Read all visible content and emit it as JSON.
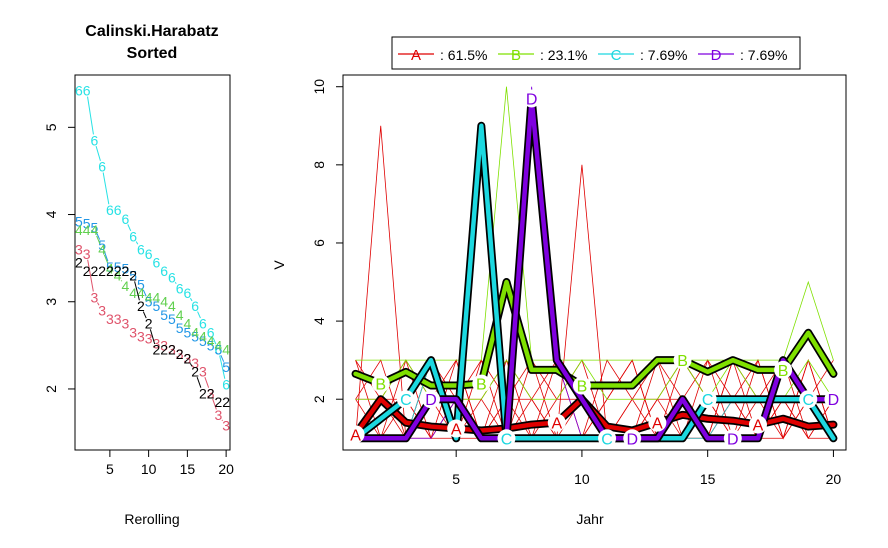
{
  "colors": {
    "A": "#DF0000",
    "B": "#7FE000",
    "C": "#1CD8E0",
    "D": "#7F00DF",
    "red": "#DF536B",
    "green": "#61D04F",
    "blue": "#2297E6",
    "cyan": "#28E2E5",
    "black": "#000000",
    "thin_red": "#DF0000"
  },
  "chart_data": [
    {
      "type": "scatter",
      "title": "Calinski.Harabatz\nSorted",
      "title_line1": "Calinski.Harabatz",
      "title_line2": "Sorted",
      "xlabel": "Rerolling",
      "ylabel": "",
      "xlim": [
        0.5,
        20.5
      ],
      "ylim": [
        1.3,
        5.6
      ],
      "xticks": [
        "5",
        "10",
        "15",
        "20"
      ],
      "yticks": [
        "2",
        "3",
        "4",
        "5"
      ],
      "series": [
        {
          "label": "6",
          "color": "cyan",
          "values": [
            5.42,
            5.42,
            4.85,
            4.55,
            4.05,
            4.05,
            3.95,
            3.75,
            3.6,
            3.55,
            3.45,
            3.35,
            3.28,
            3.15,
            3.1,
            2.95,
            2.75,
            2.65,
            2.45,
            2.05
          ]
        },
        {
          "label": "5",
          "color": "blue",
          "values": [
            3.92,
            3.9,
            3.85,
            3.65,
            3.4,
            3.4,
            3.38,
            3.3,
            3.2,
            3.0,
            2.95,
            2.85,
            2.8,
            2.7,
            2.65,
            2.6,
            2.55,
            2.5,
            2.45,
            2.25
          ]
        },
        {
          "label": "4",
          "color": "green",
          "values": [
            3.82,
            3.82,
            3.82,
            3.6,
            3.38,
            3.3,
            3.18,
            3.1,
            3.1,
            3.05,
            3.05,
            3.0,
            2.95,
            2.85,
            2.75,
            2.65,
            2.6,
            2.55,
            2.5,
            2.45
          ]
        },
        {
          "label": "3",
          "color": "red",
          "values": [
            3.6,
            3.55,
            3.05,
            2.9,
            2.8,
            2.8,
            2.75,
            2.65,
            2.6,
            2.58,
            2.52,
            2.5,
            2.45,
            2.4,
            2.35,
            2.3,
            2.2,
            1.95,
            1.7,
            1.58
          ]
        },
        {
          "label": "2",
          "color": "black",
          "values": [
            3.45,
            3.35,
            3.35,
            3.35,
            3.35,
            3.35,
            3.35,
            3.3,
            2.95,
            2.75,
            2.45,
            2.45,
            2.45,
            2.4,
            2.35,
            2.2,
            1.95,
            1.95,
            1.85,
            1.85
          ]
        }
      ]
    },
    {
      "type": "line",
      "title": "",
      "xlabel": "Jahr",
      "ylabel": "V",
      "xlim": [
        0.5,
        20.5
      ],
      "ylim": [
        0.7,
        10.3
      ],
      "xticks": [
        "5",
        "10",
        "15",
        "20"
      ],
      "yticks": [
        "2",
        "4",
        "6",
        "8",
        "10"
      ],
      "legend": {
        "position": "top",
        "entries": [
          {
            "letter": "A",
            "text": ": 61.5%",
            "color": "A"
          },
          {
            "letter": "B",
            "text": ": 23.1%",
            "color": "B"
          },
          {
            "letter": "C",
            "text": ": 7.69%",
            "color": "C"
          },
          {
            "letter": "D",
            "text": ": 7.69%",
            "color": "D"
          }
        ]
      },
      "background_series": [
        {
          "color": "A",
          "values": [
            1,
            9,
            1,
            3,
            2,
            1,
            3,
            2,
            1,
            8,
            1,
            1,
            3,
            2,
            1,
            3,
            2,
            1,
            3,
            1
          ]
        },
        {
          "color": "A",
          "values": [
            3,
            1,
            2,
            1,
            3,
            1,
            2,
            3,
            1,
            1,
            2,
            3,
            1,
            2,
            3,
            1,
            1,
            2,
            1,
            2
          ]
        },
        {
          "color": "A",
          "values": [
            2,
            3,
            1,
            2,
            1,
            3,
            1,
            1,
            3,
            2,
            1,
            2,
            3,
            1,
            1,
            2,
            3,
            1,
            2,
            1
          ]
        },
        {
          "color": "A",
          "values": [
            1,
            2,
            3,
            1,
            2,
            2,
            3,
            1,
            2,
            3,
            1,
            1,
            2,
            3,
            2,
            1,
            2,
            3,
            1,
            1
          ]
        },
        {
          "color": "A",
          "values": [
            2,
            1,
            1,
            3,
            1,
            1,
            2,
            2,
            1,
            1,
            3,
            2,
            1,
            1,
            3,
            2,
            1,
            1,
            2,
            3
          ]
        },
        {
          "color": "A",
          "values": [
            3,
            2,
            2,
            1,
            1,
            2,
            1,
            3,
            2,
            2,
            1,
            1,
            2,
            2,
            1,
            3,
            1,
            2,
            1,
            2
          ]
        },
        {
          "color": "A",
          "values": [
            1,
            1,
            3,
            2,
            3,
            1,
            1,
            2,
            3,
            1,
            2,
            3,
            1,
            3,
            2,
            1,
            3,
            1,
            3,
            1
          ]
        },
        {
          "color": "A",
          "values": [
            2,
            2,
            1,
            1,
            2,
            3,
            2,
            1,
            1,
            2,
            1,
            2,
            2,
            1,
            1,
            2,
            1,
            3,
            2,
            2
          ]
        },
        {
          "color": "B",
          "values": [
            3,
            3,
            3,
            3,
            3,
            3,
            10,
            3,
            3,
            3,
            3,
            3,
            3,
            3,
            3,
            3,
            3,
            3,
            5,
            3
          ]
        },
        {
          "color": "B",
          "values": [
            2,
            2,
            3,
            2,
            2,
            2,
            3,
            2,
            2,
            3,
            2,
            2,
            2,
            3,
            2,
            3,
            2,
            2,
            3,
            2
          ]
        },
        {
          "color": "C",
          "values": [
            1,
            1,
            1,
            3,
            1,
            9,
            1,
            1,
            1,
            1,
            1,
            1,
            1,
            1,
            1,
            2,
            2,
            2,
            2,
            1
          ]
        },
        {
          "color": "D",
          "values": [
            1,
            1,
            1,
            1,
            2,
            1,
            1,
            10,
            3,
            1,
            1,
            1,
            1,
            2,
            1,
            1,
            1,
            3,
            2,
            2
          ]
        }
      ],
      "series": [
        {
          "name": "A",
          "color": "A",
          "values": [
            1.1,
            2.0,
            1.4,
            1.3,
            1.25,
            1.2,
            1.25,
            1.35,
            1.4,
            2.0,
            1.3,
            1.2,
            1.4,
            1.6,
            1.5,
            1.45,
            1.35,
            1.5,
            1.3,
            1.35
          ]
        },
        {
          "name": "B",
          "color": "B",
          "values": [
            2.65,
            2.4,
            2.7,
            2.35,
            2.35,
            2.4,
            5.0,
            2.75,
            2.75,
            2.35,
            2.35,
            2.35,
            3.0,
            3.0,
            2.7,
            3.0,
            2.75,
            2.75,
            3.7,
            2.65
          ]
        },
        {
          "name": "C",
          "color": "C",
          "values": [
            1.0,
            1.5,
            2.0,
            3.0,
            1.0,
            9.0,
            1.0,
            1.0,
            1.0,
            1.0,
            1.0,
            1.0,
            1.0,
            1.0,
            2.0,
            2.0,
            2.0,
            2.0,
            2.0,
            1.0
          ]
        },
        {
          "name": "D",
          "color": "D",
          "values": [
            1.0,
            1.0,
            1.0,
            2.0,
            2.0,
            1.0,
            1.0,
            9.7,
            3.0,
            2.0,
            1.0,
            1.0,
            1.0,
            2.0,
            1.0,
            1.0,
            1.0,
            3.0,
            2.0,
            2.0
          ]
        }
      ],
      "point_labels": [
        {
          "series": "A",
          "x": [
            1,
            5,
            9,
            13,
            17
          ]
        },
        {
          "series": "B",
          "x": [
            2,
            6,
            10,
            14,
            18
          ]
        },
        {
          "series": "C",
          "x": [
            3,
            7,
            11,
            15,
            19
          ]
        },
        {
          "series": "D",
          "x": [
            4,
            8,
            12,
            16,
            20
          ]
        }
      ]
    }
  ]
}
